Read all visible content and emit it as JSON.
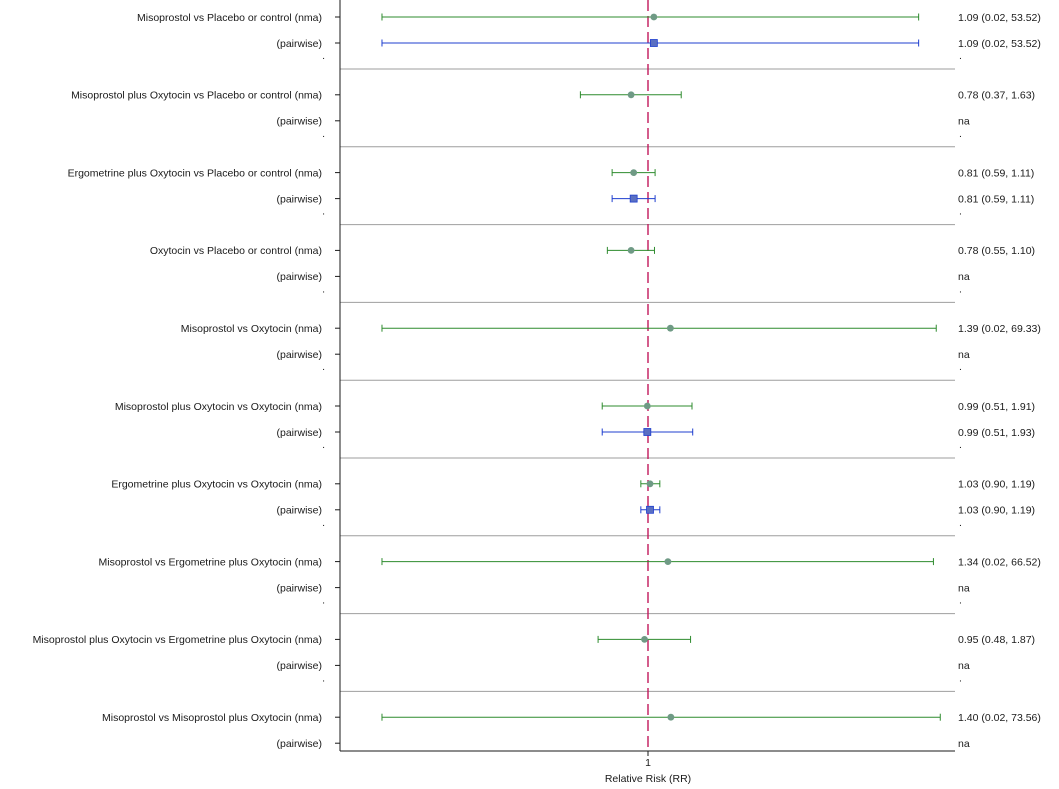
{
  "chart_data": {
    "type": "forest",
    "xlabel": "Relative Risk (RR)",
    "x_scale": "log",
    "xlim": [
      0.02,
      75
    ],
    "reference_value": 1,
    "x_ticks": [
      {
        "value": 1,
        "label": "1"
      }
    ],
    "series": [
      {
        "name": "nma",
        "color": "#2e8b2e",
        "marker_color": "#6f9a85",
        "marker": "circle"
      },
      {
        "name": "pairwise",
        "color": "#1f3fcf",
        "marker_color": "#5a6fc2",
        "marker": "square"
      }
    ],
    "rows": [
      {
        "label": "Misoprostol vs Placebo or control (nma)",
        "series": "nma",
        "est": 1.09,
        "lo": 0.02,
        "hi": 53.52,
        "text": "1.09 (0.02, 53.52)"
      },
      {
        "label": "(pairwise)",
        "series": "pairwise",
        "est": 1.09,
        "lo": 0.02,
        "hi": 53.52,
        "text": "1.09 (0.02, 53.52)"
      },
      {
        "label": "Misoprostol plus Oxytocin vs Placebo or control (nma)",
        "series": "nma",
        "est": 0.78,
        "lo": 0.37,
        "hi": 1.63,
        "text": "0.78 (0.37, 1.63)"
      },
      {
        "label": "(pairwise)",
        "series": "pairwise",
        "est": null,
        "lo": null,
        "hi": null,
        "text": "na"
      },
      {
        "label": "Ergometrine plus Oxytocin vs Placebo or control (nma)",
        "series": "nma",
        "est": 0.81,
        "lo": 0.59,
        "hi": 1.11,
        "text": "0.81 (0.59, 1.11)"
      },
      {
        "label": "(pairwise)",
        "series": "pairwise",
        "est": 0.81,
        "lo": 0.59,
        "hi": 1.11,
        "text": "0.81 (0.59, 1.11)"
      },
      {
        "label": "Oxytocin vs Placebo or control (nma)",
        "series": "nma",
        "est": 0.78,
        "lo": 0.55,
        "hi": 1.1,
        "text": "0.78 (0.55, 1.10)"
      },
      {
        "label": "(pairwise)",
        "series": "pairwise",
        "est": null,
        "lo": null,
        "hi": null,
        "text": "na"
      },
      {
        "label": "Misoprostol vs Oxytocin (nma)",
        "series": "nma",
        "est": 1.39,
        "lo": 0.02,
        "hi": 69.33,
        "text": "1.39 (0.02, 69.33)"
      },
      {
        "label": "(pairwise)",
        "series": "pairwise",
        "est": null,
        "lo": null,
        "hi": null,
        "text": "na"
      },
      {
        "label": "Misoprostol plus Oxytocin vs Oxytocin (nma)",
        "series": "nma",
        "est": 0.99,
        "lo": 0.51,
        "hi": 1.91,
        "text": "0.99 (0.51, 1.91)"
      },
      {
        "label": "(pairwise)",
        "series": "pairwise",
        "est": 0.99,
        "lo": 0.51,
        "hi": 1.93,
        "text": "0.99 (0.51, 1.93)"
      },
      {
        "label": "Ergometrine plus Oxytocin vs Oxytocin (nma)",
        "series": "nma",
        "est": 1.03,
        "lo": 0.9,
        "hi": 1.19,
        "text": "1.03 (0.90, 1.19)"
      },
      {
        "label": "(pairwise)",
        "series": "pairwise",
        "est": 1.03,
        "lo": 0.9,
        "hi": 1.19,
        "text": "1.03 (0.90, 1.19)"
      },
      {
        "label": "Misoprostol vs Ergometrine plus Oxytocin (nma)",
        "series": "nma",
        "est": 1.34,
        "lo": 0.02,
        "hi": 66.52,
        "text": "1.34 (0.02, 66.52)"
      },
      {
        "label": "(pairwise)",
        "series": "pairwise",
        "est": null,
        "lo": null,
        "hi": null,
        "text": "na"
      },
      {
        "label": "Misoprostol plus Oxytocin vs Ergometrine plus Oxytocin (nma)",
        "series": "nma",
        "est": 0.95,
        "lo": 0.48,
        "hi": 1.87,
        "text": "0.95 (0.48, 1.87)"
      },
      {
        "label": "(pairwise)",
        "series": "pairwise",
        "est": null,
        "lo": null,
        "hi": null,
        "text": "na"
      },
      {
        "label": "Misoprostol vs Misoprostol plus Oxytocin (nma)",
        "series": "nma",
        "est": 1.4,
        "lo": 0.02,
        "hi": 73.56,
        "text": "1.40 (0.02, 73.56)"
      },
      {
        "label": "(pairwise)",
        "series": "pairwise",
        "est": null,
        "lo": null,
        "hi": null,
        "text": "na"
      }
    ],
    "separator_text": "."
  }
}
